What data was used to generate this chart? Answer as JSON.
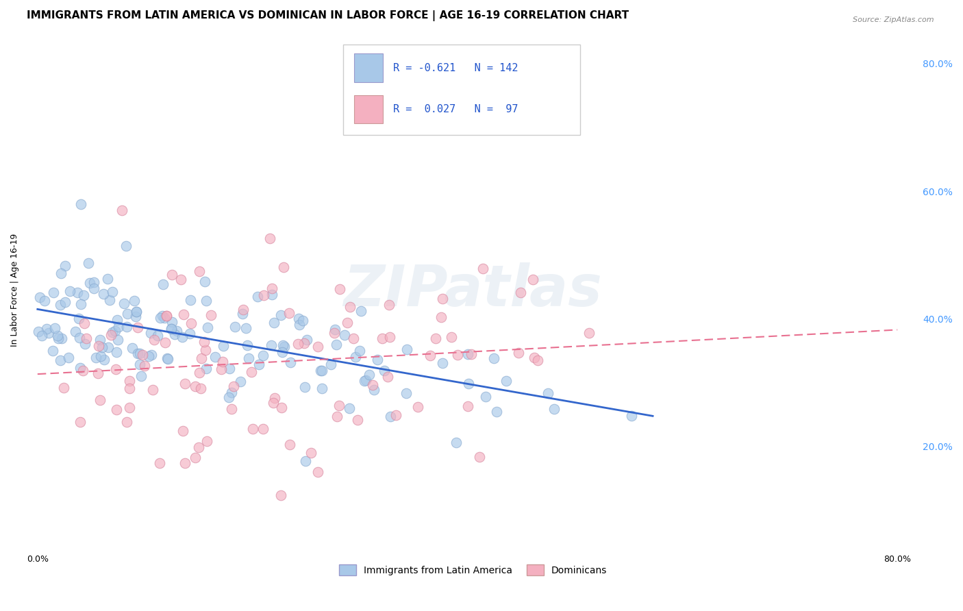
{
  "title": "IMMIGRANTS FROM LATIN AMERICA VS DOMINICAN IN LABOR FORCE | AGE 16-19 CORRELATION CHART",
  "source_text": "Source: ZipAtlas.com",
  "ylabel": "In Labor Force | Age 16-19",
  "xlabel_ticks": [
    "0.0%",
    "",
    "",
    "",
    "80.0%"
  ],
  "xlabel_vals": [
    0.0,
    0.2,
    0.4,
    0.6,
    0.8
  ],
  "ylabel_ticks": [
    "20.0%",
    "40.0%",
    "60.0%",
    "80.0%"
  ],
  "ylabel_vals": [
    0.2,
    0.4,
    0.6,
    0.8
  ],
  "watermark": "ZIPatlas",
  "legend_R_color": "#2255cc",
  "series1_color": "#a8c8e8",
  "series2_color": "#f4b0c0",
  "trendline1_color": "#3366cc",
  "trendline2_color": "#e87090",
  "series1_R": -0.621,
  "series1_N": 142,
  "series2_R": 0.027,
  "series2_N": 97,
  "background_color": "#ffffff",
  "grid_color": "#cccccc",
  "title_fontsize": 11,
  "axis_label_fontsize": 9,
  "tick_fontsize": 9
}
